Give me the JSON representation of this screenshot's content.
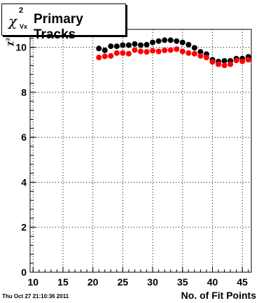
{
  "title": {
    "symbol": "χ",
    "sup": "2",
    "sub": "Vx",
    "text": "Primary Tracks"
  },
  "footer": {
    "timestamp": "Thu Oct 27 21:10:36 2011"
  },
  "colors": {
    "series_black": "#000000",
    "series_red": "#ff0000",
    "grid": "#000000",
    "background": "#ffffff"
  },
  "chart_data": {
    "type": "scatter",
    "title": "χ²Vx Primary Tracks",
    "xlabel": "No. of Fit Points",
    "ylabel": "χ²",
    "xlim": [
      9.5,
      46.5
    ],
    "ylim": [
      0,
      10.8
    ],
    "xticks": [
      10,
      15,
      20,
      25,
      30,
      35,
      40,
      45
    ],
    "yticks": [
      0,
      2,
      4,
      6,
      8,
      10
    ],
    "grid": true,
    "series": [
      {
        "color": "#000000",
        "x": [
          21,
          22,
          23,
          24,
          25,
          26,
          27,
          28,
          29,
          30,
          31,
          32,
          33,
          34,
          35,
          36,
          37,
          38,
          39,
          40,
          41,
          42,
          43,
          44,
          45,
          46
        ],
        "y": [
          9.95,
          9.87,
          10.05,
          10.05,
          10.1,
          10.1,
          10.15,
          10.1,
          10.12,
          10.22,
          10.28,
          10.32,
          10.32,
          10.28,
          10.22,
          10.12,
          9.98,
          9.8,
          9.7,
          9.45,
          9.37,
          9.4,
          9.4,
          9.5,
          9.5,
          9.58
        ]
      },
      {
        "color": "#ff0000",
        "x": [
          21,
          22,
          23,
          24,
          25,
          26,
          27,
          28,
          29,
          30,
          31,
          32,
          33,
          34,
          35,
          36,
          37,
          38,
          39,
          40,
          41,
          42,
          43,
          44,
          45,
          46
        ],
        "y": [
          9.55,
          9.6,
          9.62,
          9.75,
          9.75,
          9.72,
          9.88,
          9.82,
          9.8,
          9.85,
          9.82,
          9.87,
          9.88,
          9.92,
          9.82,
          9.75,
          9.72,
          9.62,
          9.55,
          9.35,
          9.25,
          9.2,
          9.25,
          9.42,
          9.38,
          9.45
        ]
      }
    ]
  }
}
